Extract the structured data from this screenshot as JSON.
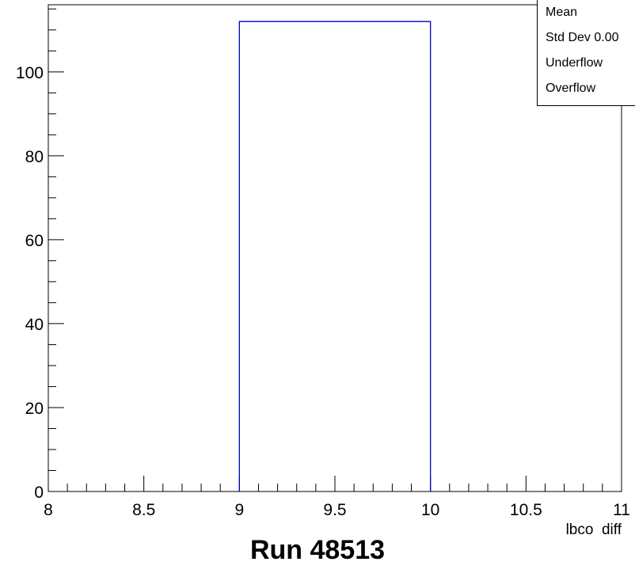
{
  "chart_data": {
    "type": "bar",
    "bins": [
      {
        "x_low": 9,
        "x_high": 10,
        "value": 112
      }
    ],
    "xlim": [
      8,
      11
    ],
    "ylim": [
      0,
      116
    ],
    "x_ticks": [
      "8",
      "8.5",
      "9",
      "9.5",
      "10",
      "10.5",
      "11"
    ],
    "y_ticks": [
      "0",
      "20",
      "40",
      "60",
      "80",
      "100"
    ],
    "xlabel": "lbco_diff",
    "ylabel": "",
    "line_color": "#0000cc",
    "grid": false
  },
  "stats_box": {
    "rows": [
      "Mean",
      "Std Dev  0.00",
      "Underflow",
      "Overflow"
    ]
  },
  "caption": "Run 48513"
}
